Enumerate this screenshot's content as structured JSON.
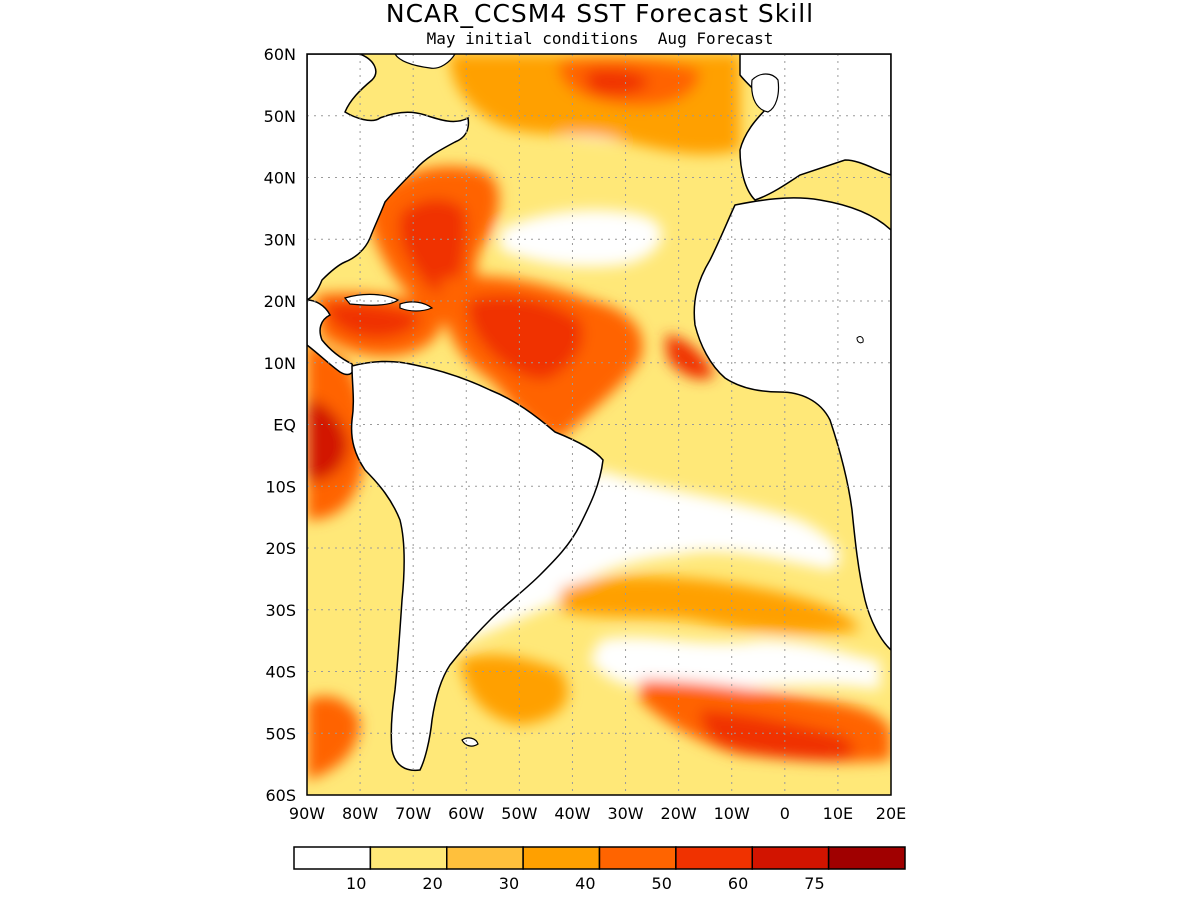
{
  "title": "NCAR_CCSM4 SST Forecast Skill",
  "subtitle": "May initial conditions  Aug Forecast",
  "map": {
    "region": "Atlantic Ocean",
    "lon_range": [
      -90,
      20
    ],
    "lat_range": [
      -60,
      60
    ],
    "grid": true,
    "coastline_color": "#000000",
    "land_color": "#ffffff"
  },
  "y_ticks": [
    {
      "value": 60,
      "label": "60N"
    },
    {
      "value": 50,
      "label": "50N"
    },
    {
      "value": 40,
      "label": "40N"
    },
    {
      "value": 30,
      "label": "30N"
    },
    {
      "value": 20,
      "label": "20N"
    },
    {
      "value": 10,
      "label": "10N"
    },
    {
      "value": 0,
      "label": "EQ"
    },
    {
      "value": -10,
      "label": "10S"
    },
    {
      "value": -20,
      "label": "20S"
    },
    {
      "value": -30,
      "label": "30S"
    },
    {
      "value": -40,
      "label": "40S"
    },
    {
      "value": -50,
      "label": "50S"
    },
    {
      "value": -60,
      "label": "60S"
    }
  ],
  "x_ticks": [
    {
      "value": -90,
      "label": "90W"
    },
    {
      "value": -80,
      "label": "80W"
    },
    {
      "value": -70,
      "label": "70W"
    },
    {
      "value": -60,
      "label": "60W"
    },
    {
      "value": -50,
      "label": "50W"
    },
    {
      "value": -40,
      "label": "40W"
    },
    {
      "value": -30,
      "label": "30W"
    },
    {
      "value": -20,
      "label": "20W"
    },
    {
      "value": -10,
      "label": "10W"
    },
    {
      "value": 0,
      "label": "0"
    },
    {
      "value": 10,
      "label": "10E"
    },
    {
      "value": 20,
      "label": "20E"
    }
  ],
  "colorbar": {
    "bins": [
      {
        "color": "#ffffff",
        "upper": "10"
      },
      {
        "color": "#ffe878",
        "upper": "20"
      },
      {
        "color": "#ffc03c",
        "upper": "30"
      },
      {
        "color": "#ffa000",
        "upper": "40"
      },
      {
        "color": "#ff6400",
        "upper": "50"
      },
      {
        "color": "#f03200",
        "upper": "60"
      },
      {
        "color": "#d21400",
        "upper": "75"
      },
      {
        "color": "#a00000",
        "upper": ""
      }
    ]
  },
  "skill_regions": [
    {
      "name": "north-atlantic-subpolar",
      "level": 4
    },
    {
      "name": "gulf-stream",
      "level": 5
    },
    {
      "name": "tropical-north-atlantic",
      "level": 5
    },
    {
      "name": "caribbean",
      "level": 5
    },
    {
      "name": "east-pacific-equatorial",
      "level": 6
    },
    {
      "name": "mauritania-upwelling",
      "level": 5
    },
    {
      "name": "south-atlantic-40s",
      "level": 4
    },
    {
      "name": "southern-ocean-50s",
      "level": 5
    }
  ]
}
